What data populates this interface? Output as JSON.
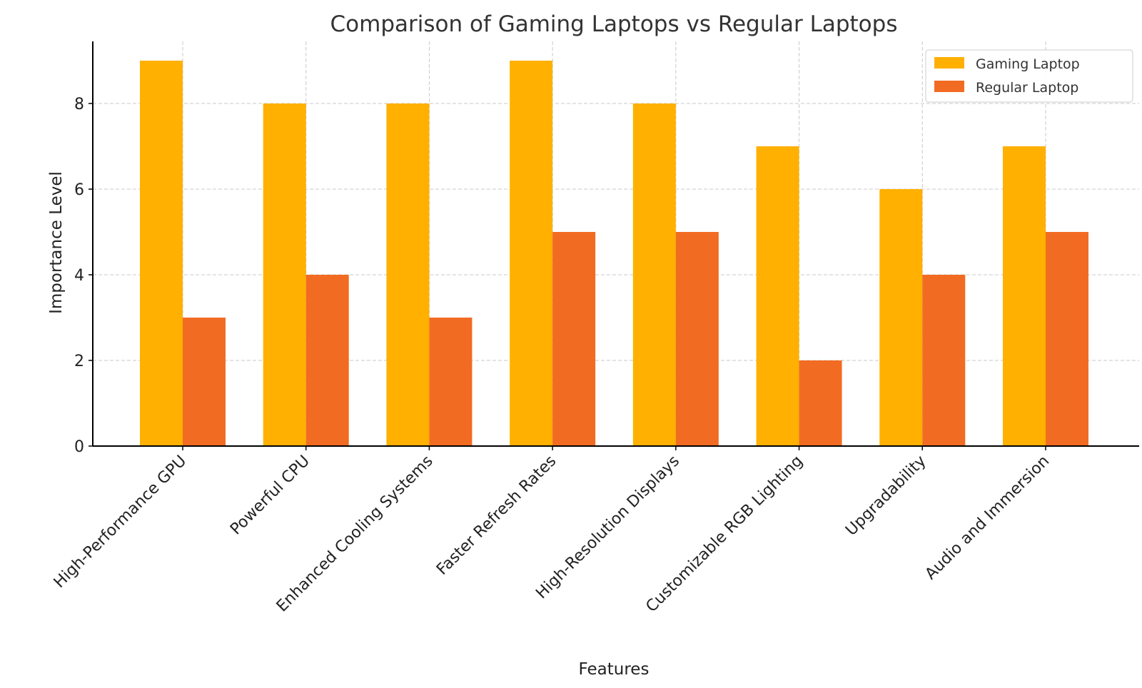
{
  "chart_data": {
    "type": "bar",
    "title": "Comparison of Gaming Laptops vs Regular Laptops",
    "xlabel": "Features",
    "ylabel": "Importance Level",
    "categories": [
      "High-Performance GPU",
      "Powerful CPU",
      "Enhanced Cooling Systems",
      "Faster Refresh Rates",
      "High-Resolution Displays",
      "Customizable RGB Lighting",
      "Upgradability",
      "Audio and Immersion"
    ],
    "series": [
      {
        "name": "Gaming Laptop",
        "color": "#FFB000",
        "values": [
          9,
          8,
          8,
          9,
          8,
          7,
          6,
          7
        ]
      },
      {
        "name": "Regular Laptop",
        "color": "#F26B22",
        "values": [
          3,
          4,
          3,
          5,
          5,
          2,
          4,
          5
        ]
      }
    ],
    "ylim": [
      0,
      9.45
    ],
    "yticks": [
      0,
      2,
      4,
      6,
      8
    ],
    "grid": true,
    "legend": "top-right"
  }
}
